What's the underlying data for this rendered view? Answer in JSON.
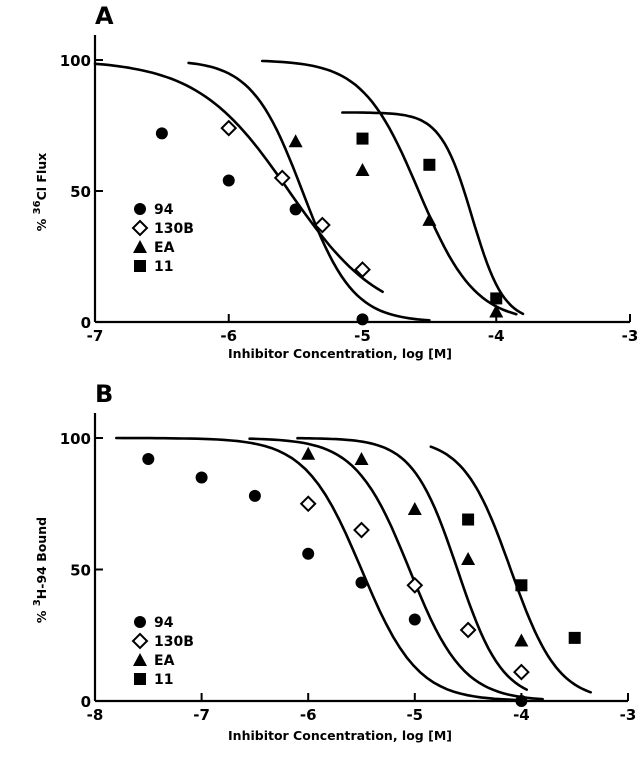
{
  "chart_data": [
    {
      "panel": "A",
      "type": "scatter",
      "xlabel": "Inhibitor Concentration, log [M]",
      "ylabel_sup": "36",
      "ylabel_main": "Cl Flux",
      "ylabel_prefix": "%",
      "xlim": [
        -7,
        -3
      ],
      "ylim": [
        0,
        100
      ],
      "xticks": [
        -7,
        -6,
        -5,
        -4,
        -3
      ],
      "xtick_labels": [
        "-7",
        "-6",
        "-5",
        "-4",
        "-3"
      ],
      "yticks": [
        0,
        50,
        100
      ],
      "ytick_labels": [
        "0",
        "50",
        "100"
      ],
      "legend_position": "left-middle",
      "series": [
        {
          "name": "94",
          "marker": "circle",
          "points": [
            [
              -6.5,
              72
            ],
            [
              -6.0,
              54
            ],
            [
              -5.5,
              43
            ],
            [
              -5.0,
              1
            ]
          ],
          "fit": {
            "x_range": [
              -7.0,
              -4.85
            ],
            "ic50": -5.55,
            "hill": 0.55,
            "top": 100
          }
        },
        {
          "name": "130B",
          "marker": "diamond",
          "points": [
            [
              -6.0,
              74
            ],
            [
              -5.6,
              55
            ],
            [
              -5.3,
              37
            ],
            [
              -5.0,
              20
            ]
          ],
          "fit": {
            "x_range": [
              -6.3,
              -4.5
            ],
            "ic50": -5.45,
            "hill": 1.0,
            "top": 100
          }
        },
        {
          "name": "EA",
          "marker": "triangle",
          "points": [
            [
              -5.5,
              69
            ],
            [
              -5.0,
              58
            ],
            [
              -4.5,
              39
            ],
            [
              -4.0,
              4
            ]
          ],
          "fit": {
            "x_range": [
              -5.75,
              -3.85
            ],
            "ic50": -4.58,
            "hill": 0.9,
            "top": 100
          }
        },
        {
          "name": "11",
          "marker": "square",
          "points": [
            [
              -5.0,
              70
            ],
            [
              -4.5,
              60
            ],
            [
              -4.0,
              9
            ]
          ],
          "fit": {
            "x_range": [
              -5.15,
              -3.8
            ],
            "ic50": -4.18,
            "hill": 1.6,
            "top": 80
          }
        }
      ]
    },
    {
      "panel": "B",
      "type": "scatter",
      "xlabel": "Inhibitor Concentration, log [M]",
      "ylabel_sup": "3",
      "ylabel_main": "H-94 Bound",
      "ylabel_prefix": "%",
      "xlim": [
        -8,
        -3
      ],
      "ylim": [
        0,
        100
      ],
      "xticks": [
        -8,
        -7,
        -6,
        -5,
        -4,
        -3
      ],
      "xtick_labels": [
        "-8",
        "-7",
        "-6",
        "-5",
        "-4",
        "-3"
      ],
      "yticks": [
        0,
        50,
        100
      ],
      "ytick_labels": [
        "0",
        "50",
        "100"
      ],
      "legend_position": "left-middle",
      "series": [
        {
          "name": "94",
          "marker": "circle",
          "points": [
            [
              -7.5,
              92
            ],
            [
              -7.0,
              85
            ],
            [
              -6.5,
              78
            ],
            [
              -6.0,
              56
            ],
            [
              -5.5,
              45
            ],
            [
              -5.0,
              31
            ],
            [
              -4.0,
              0
            ]
          ],
          "fit": {
            "x_range": [
              -7.8,
              -4.0
            ],
            "ic50": -5.5,
            "hill": 0.72,
            "top": 100
          }
        },
        {
          "name": "130B",
          "marker": "diamond",
          "points": [
            [
              -6.0,
              75
            ],
            [
              -5.5,
              65
            ],
            [
              -5.0,
              44
            ],
            [
              -4.5,
              27
            ],
            [
              -4.0,
              11
            ]
          ],
          "fit": {
            "x_range": [
              -6.55,
              -3.8
            ],
            "ic50": -5.05,
            "hill": 0.75,
            "top": 100
          }
        },
        {
          "name": "EA",
          "marker": "triangle",
          "points": [
            [
              -6.0,
              94
            ],
            [
              -5.5,
              92
            ],
            [
              -5.0,
              73
            ],
            [
              -4.5,
              54
            ],
            [
              -4.0,
              23
            ]
          ],
          "fit": {
            "x_range": [
              -6.1,
              -3.95
            ],
            "ic50": -4.6,
            "hill": 0.9,
            "top": 100
          }
        },
        {
          "name": "11",
          "marker": "square",
          "points": [
            [
              -4.5,
              69
            ],
            [
              -4.0,
              44
            ],
            [
              -3.5,
              24
            ]
          ],
          "fit": {
            "x_range": [
              -4.85,
              -3.35
            ],
            "ic50": -4.1,
            "hill": 0.85,
            "top": 100
          }
        }
      ]
    }
  ]
}
